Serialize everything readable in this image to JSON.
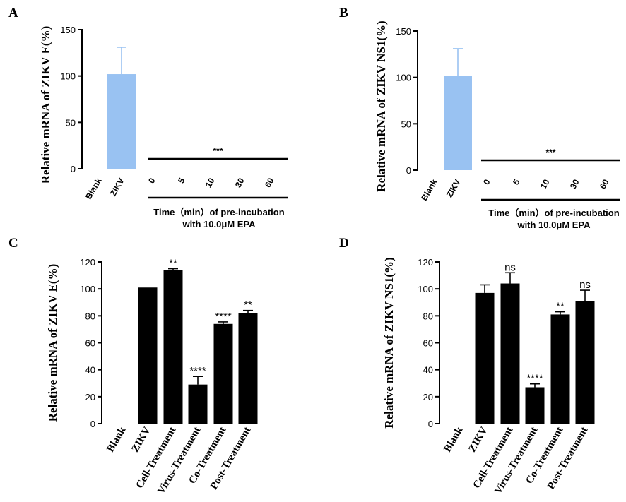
{
  "chart_data": [
    {
      "panel": "A",
      "type": "bar",
      "ylabel": "Relative mRNA of ZIKV E(%)",
      "ylim": [
        0,
        150
      ],
      "yticks": [
        0,
        50,
        100,
        150
      ],
      "categories": [
        "Blank",
        "ZIKV",
        "0",
        "5",
        "10",
        "30",
        "60"
      ],
      "values": [
        0,
        102,
        0,
        0,
        0,
        0,
        0
      ],
      "errors": [
        0,
        29,
        0,
        0,
        0,
        0,
        0
      ],
      "bar_color": "#99c2f2",
      "significance_label": "***",
      "xtitle_line1": "Time（min）of pre-incubation",
      "xtitle_line2": "with 10.0μM EPA"
    },
    {
      "panel": "B",
      "type": "bar",
      "ylabel": "Relative mRNA of ZIKV NS1(%)",
      "ylim": [
        0,
        150
      ],
      "yticks": [
        0,
        50,
        100,
        150
      ],
      "categories": [
        "Blank",
        "ZIKV",
        "0",
        "5",
        "10",
        "30",
        "60"
      ],
      "values": [
        0,
        102,
        0,
        0,
        0,
        0,
        0
      ],
      "errors": [
        0,
        29,
        0,
        0,
        0,
        0,
        0
      ],
      "bar_color": "#99c2f2",
      "significance_label": "***",
      "xtitle_line1": "Time（min）of pre-incubation",
      "xtitle_line2": "with 10.0μM EPA"
    },
    {
      "panel": "C",
      "type": "bar",
      "ylabel": "Relative mRNA of ZIKV E(%)",
      "ylim": [
        0,
        120
      ],
      "yticks": [
        0,
        20,
        40,
        60,
        80,
        100,
        120
      ],
      "categories": [
        "Blank",
        "ZIKV",
        "Cell-Treatment",
        "Virus-Treatment",
        "Co-Treatment",
        "Post-Treatment"
      ],
      "values": [
        0,
        101,
        114,
        29,
        74,
        82
      ],
      "errors": [
        0,
        0,
        1,
        6,
        1.5,
        2
      ],
      "significance": [
        "",
        "",
        "**",
        "****",
        "****",
        "**"
      ],
      "bar_color": "#000000"
    },
    {
      "panel": "D",
      "type": "bar",
      "ylabel": "Relative mRNA of ZIKV NS1(%)",
      "ylim": [
        0,
        120
      ],
      "yticks": [
        0,
        20,
        40,
        60,
        80,
        100,
        120
      ],
      "categories": [
        "Blank",
        "ZIKV",
        "Cell-Treatment",
        "Virus-Treatment",
        "Co-Treatment",
        "Post-Treatment"
      ],
      "values": [
        0,
        97,
        104,
        27,
        81,
        91
      ],
      "errors": [
        0,
        6,
        8,
        2.5,
        2,
        8
      ],
      "significance": [
        "",
        "",
        "ns",
        "****",
        "**",
        "ns"
      ],
      "bar_color": "#000000"
    }
  ]
}
